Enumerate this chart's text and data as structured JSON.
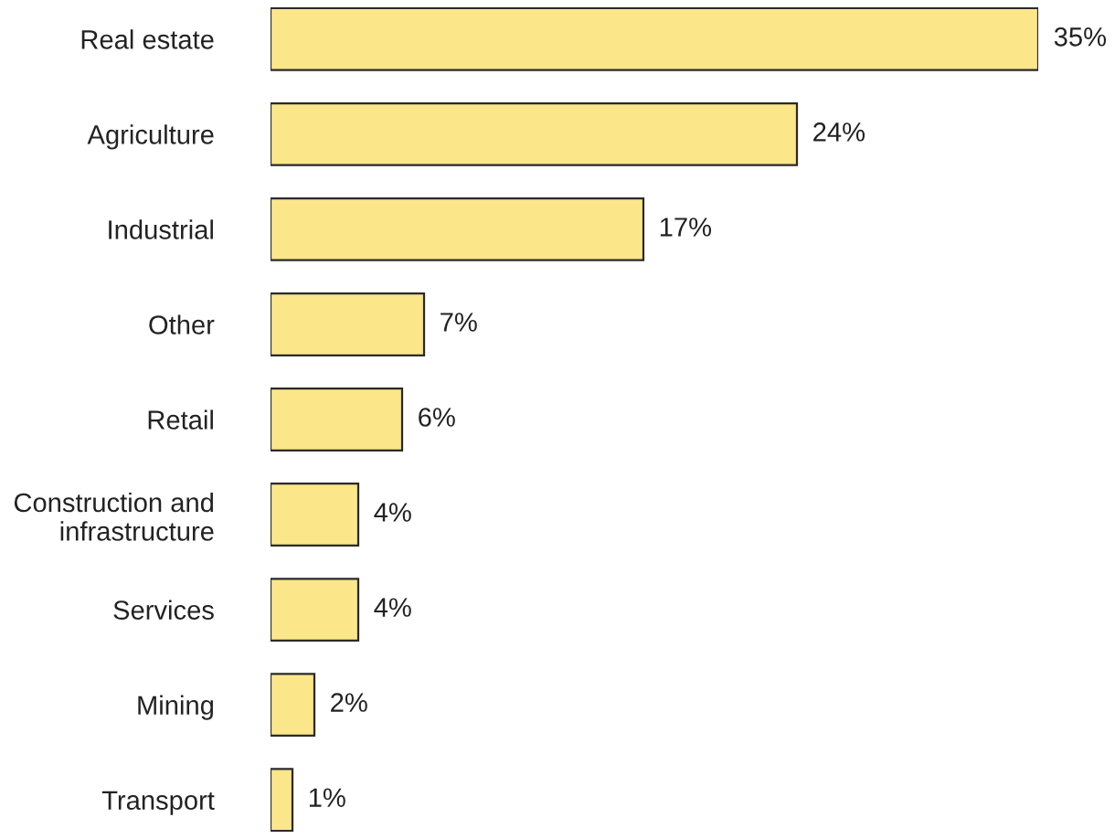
{
  "chart_data": {
    "type": "bar",
    "orientation": "horizontal",
    "categories": [
      "Real estate",
      "Agriculture",
      "Industrial",
      "Other",
      "Retail",
      "Construction and\ninfrastructure",
      "Services",
      "Mining",
      "Transport"
    ],
    "values": [
      35,
      24,
      17,
      7,
      6,
      4,
      4,
      2,
      1
    ],
    "value_labels": [
      "35%",
      "24%",
      "17%",
      "7%",
      "6%",
      "4%",
      "4%",
      "2%",
      "1%"
    ],
    "color": "#fbe68a",
    "grid": false,
    "legend": false
  }
}
